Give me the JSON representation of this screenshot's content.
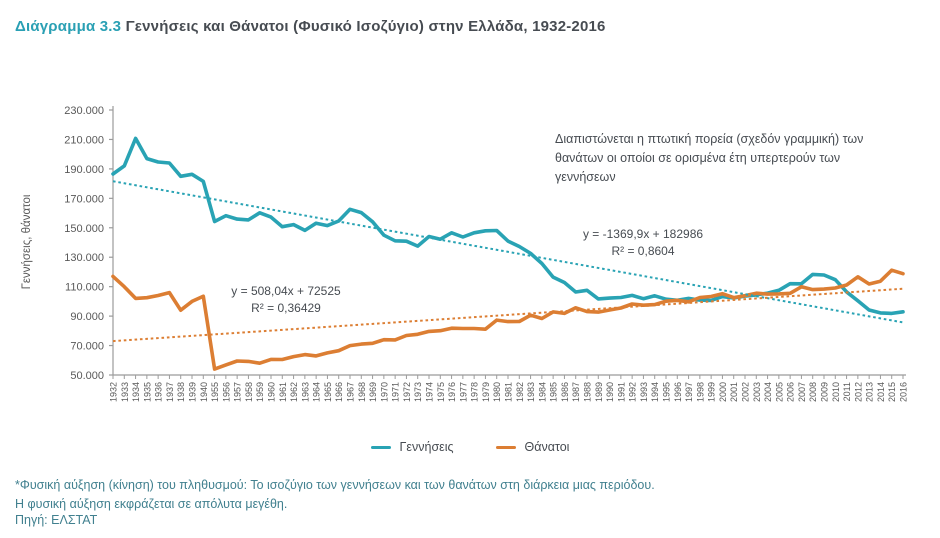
{
  "title": {
    "label": "Διάγραμμα 3.3",
    "text": " Γεννήσεις και Θάνατοι (Φυσικό Ισοζύγιο) στην Ελλάδα, 1932-2016"
  },
  "annotation": {
    "text": "Διαπιστώνεται η πτωτική πορεία (σχεδόν γραμμική) των θανάτων οι οποίοι σε ορισμένα έτη υπερτερούν των γεννήσεων"
  },
  "equations": {
    "births": {
      "line1": "y = -1369,9x + 182986",
      "line2": "R² = 0,8604"
    },
    "deaths": {
      "line1": "y = 508,04x + 72525",
      "line2": "R² = 0,36429"
    }
  },
  "legend": {
    "births": "Γεννήσεις",
    "deaths": "Θάνατοι"
  },
  "footnote": {
    "text": "*Φυσική αύξηση (κίνηση) του πληθυσμού: Το ισοζύγιο των γεννήσεων και των θανάτων στη διάρκεια μιας περιόδου. Η φυσική αύξηση εκφράζεται σε απόλυτα μεγέθη.",
    "source": "Πηγή: ΕΛΣΤΑΤ"
  },
  "colors": {
    "births": "#29a3b4",
    "deaths": "#dc7e33",
    "title_accent": "#2aa0b4",
    "text_dark": "#474c52",
    "footnote_teal": "#41808f",
    "axis": "#9b9b9b",
    "tick_text": "#595959"
  },
  "chart_data": {
    "type": "line",
    "title": "Γεννήσεις και Θάνατοι (Φυσικό Ισοζύγιο) στην Ελλάδα, 1932-2016",
    "xlabel": "",
    "ylabel": "Γεννήσεις, θάνατοι",
    "ylim": [
      50000,
      230000
    ],
    "ytick_step": 20000,
    "grid": false,
    "legend_position": "bottom",
    "x_note": "years 1941-1954 are absent from the axis",
    "categories": [
      1932,
      1933,
      1934,
      1935,
      1936,
      1937,
      1938,
      1939,
      1940,
      1955,
      1956,
      1957,
      1958,
      1959,
      1960,
      1961,
      1962,
      1963,
      1964,
      1965,
      1966,
      1967,
      1968,
      1969,
      1970,
      1971,
      1972,
      1973,
      1974,
      1975,
      1976,
      1977,
      1978,
      1979,
      1980,
      1981,
      1982,
      1983,
      1984,
      1985,
      1986,
      1987,
      1988,
      1989,
      1990,
      1991,
      1992,
      1993,
      1994,
      1995,
      1996,
      1997,
      1998,
      1999,
      2000,
      2001,
      2002,
      2003,
      2004,
      2005,
      2006,
      2007,
      2008,
      2009,
      2010,
      2011,
      2012,
      2013,
      2014,
      2015,
      2016
    ],
    "series": [
      {
        "name": "Γεννήσεις",
        "color": "#29a3b4",
        "values": [
          186500,
          192000,
          210700,
          197000,
          194700,
          194000,
          185000,
          186300,
          181500,
          154263,
          158203,
          155924,
          155359,
          160199,
          157239,
          150716,
          152158,
          148249,
          153109,
          151448,
          154613,
          162577,
          160338,
          154077,
          144928,
          141126,
          140891,
          137526,
          144069,
          142273,
          146566,
          143739,
          146588,
          147965,
          148134,
          140953,
          137275,
          132608,
          125724,
          116481,
          112810,
          106392,
          107505,
          101657,
          102229,
          102620,
          104081,
          101799,
          103763,
          101495,
          100718,
          102038,
          100894,
          100643,
          103274,
          102282,
          103569,
          104420,
          105655,
          107545,
          112042,
          111926,
          118302,
          117933,
          114766,
          106428,
          100371,
          94134,
          92148,
          91847,
          92898
        ]
      },
      {
        "name": "Θάνατοι",
        "color": "#dc7e33",
        "values": [
          117000,
          110000,
          102000,
          102500,
          104000,
          106000,
          94000,
          100000,
          103500,
          54000,
          56832,
          59500,
          59237,
          58000,
          60563,
          60500,
          62500,
          63871,
          63000,
          65000,
          66500,
          70000,
          71000,
          71500,
          74009,
          73819,
          76859,
          77640,
          79609,
          80077,
          81818,
          81615,
          81616,
          81133,
          87282,
          86261,
          86345,
          90586,
          88397,
          92886,
          91817,
          95626,
          93070,
          92717,
          94152,
          95498,
          98231,
          97419,
          97807,
          100158,
          100740,
          99738,
          102668,
          103330,
          105219,
          102559,
          103915,
          105529,
          104942,
          105091,
          105476,
          109895,
          107979,
          108316,
          109084,
          111099,
          116668,
          111794,
          113740,
          121212,
          118788
        ]
      }
    ],
    "trendlines": [
      {
        "series": "Γεννήσεις",
        "equation": "y = -1369,9x + 182986",
        "slope": -1369.9,
        "intercept": 182986,
        "r2": 0.8604,
        "color": "#29a3b4"
      },
      {
        "series": "Θάνατοι",
        "equation": "y = 508,04x + 72525",
        "slope": 508.04,
        "intercept": 72525,
        "r2": 0.36429,
        "color": "#dc7e33"
      }
    ]
  }
}
